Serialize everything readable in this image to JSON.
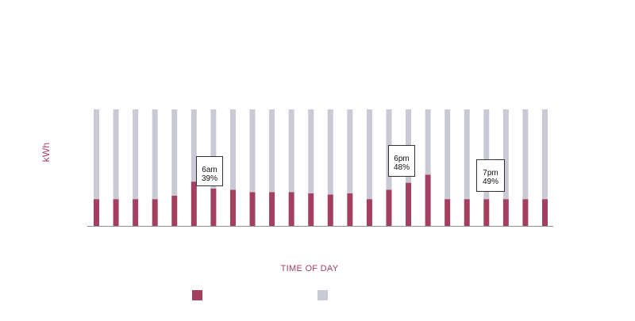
{
  "chart_data": {
    "type": "bar",
    "stacked": true,
    "title": "",
    "xlabel": "TIME OF DAY",
    "ylabel": "kWh",
    "categories": [
      "",
      "",
      "",
      "",
      "",
      "",
      "",
      "",
      "",
      "",
      "",
      "",
      "",
      "",
      "",
      "",
      "",
      "",
      "",
      "",
      "",
      "",
      "",
      ""
    ],
    "series": [
      {
        "name": "",
        "color": "#a3405f",
        "values": [
          23,
          23,
          23,
          23,
          26,
          38,
          32,
          31,
          29,
          29,
          29,
          28,
          27,
          28,
          23,
          31,
          37,
          44,
          23,
          23,
          23,
          23,
          23,
          23
        ]
      },
      {
        "name": "",
        "color": "#c9cad6",
        "values": [
          77,
          77,
          77,
          77,
          74,
          62,
          68,
          69,
          71,
          71,
          71,
          72,
          73,
          72,
          77,
          69,
          63,
          56,
          77,
          77,
          77,
          77,
          77,
          77
        ]
      }
    ],
    "ylim": [
      0,
      100
    ],
    "grid": false,
    "legend": "bottom-center",
    "annotations": [
      {
        "bar_index": 5,
        "time": "6am",
        "value": "39%"
      },
      {
        "bar_index": 16,
        "time": "6pm",
        "value": "48%"
      },
      {
        "bar_index": 20,
        "time": "7pm",
        "value": "49%"
      }
    ]
  }
}
